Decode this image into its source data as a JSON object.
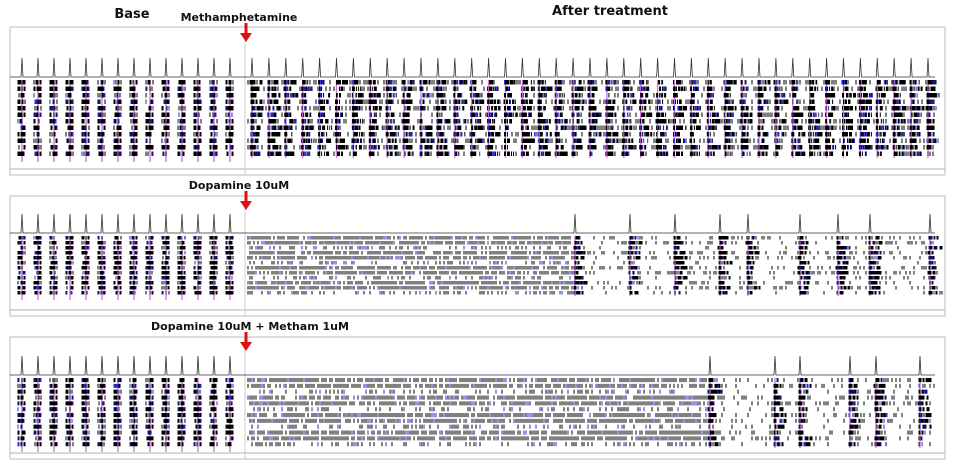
{
  "header": {
    "base": "Base",
    "after_treatment": "After treatment"
  },
  "panels": [
    {
      "label": "Methamphetamine"
    },
    {
      "label": "Dopamine 10uM"
    },
    {
      "label": "Dopamine 10uM + Metham 1uM"
    }
  ]
}
